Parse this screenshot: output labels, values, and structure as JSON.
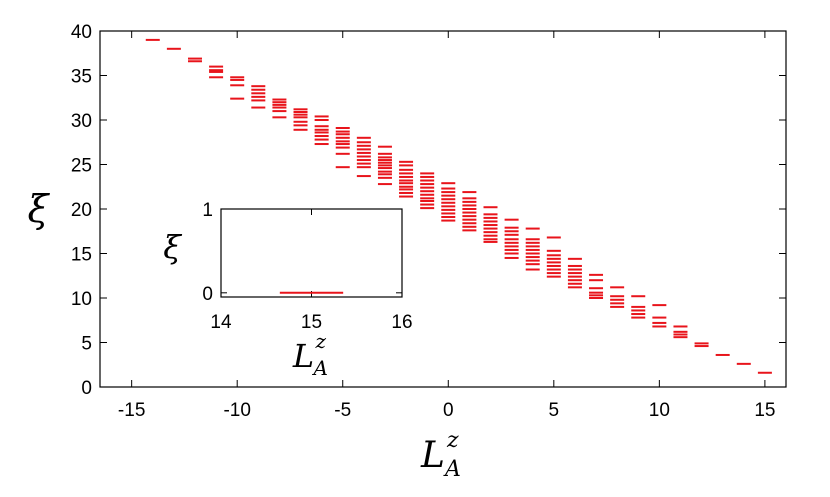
{
  "chart_data": [
    {
      "type": "scatter",
      "marker": "horizontal-dash",
      "title": "",
      "xlabel": "L",
      "xlabel_sub": "A",
      "xlabel_sup": "z",
      "ylabel": "ξ",
      "xlim": [
        -16.5,
        16
      ],
      "ylim": [
        0,
        40
      ],
      "xticks": [
        -15,
        -10,
        -5,
        0,
        5,
        10,
        15
      ],
      "yticks": [
        0,
        5,
        10,
        15,
        20,
        25,
        30,
        35,
        40
      ],
      "xtick_labels": [
        "-15",
        "-10",
        "-5",
        "0",
        "5",
        "10",
        "15"
      ],
      "ytick_labels": [
        "0",
        "5",
        "10",
        "15",
        "20",
        "25",
        "30",
        "35",
        "40"
      ],
      "color": "#e8141b",
      "grid": false,
      "legend": "none",
      "series": [
        {
          "x": -14,
          "y": [
            39.0
          ]
        },
        {
          "x": -13,
          "y": [
            38.0
          ]
        },
        {
          "x": -12,
          "y": [
            36.9,
            36.6
          ]
        },
        {
          "x": -11,
          "y": [
            36.0,
            35.6,
            35.4,
            34.8
          ]
        },
        {
          "x": -10,
          "y": [
            34.8,
            34.5,
            33.9,
            32.4
          ]
        },
        {
          "x": -9,
          "y": [
            33.8,
            33.4,
            33.0,
            32.6,
            32.2,
            31.4
          ]
        },
        {
          "x": -8,
          "y": [
            32.3,
            32.0,
            31.7,
            31.4,
            31.0,
            30.3
          ]
        },
        {
          "x": -7,
          "y": [
            31.2,
            30.9,
            30.6,
            30.3,
            29.8,
            29.4,
            28.9
          ]
        },
        {
          "x": -6,
          "y": [
            30.4,
            30.0,
            29.3,
            28.9,
            28.6,
            28.2,
            27.8,
            27.3
          ]
        },
        {
          "x": -5,
          "y": [
            29.1,
            28.7,
            28.4,
            28.0,
            27.6,
            27.3,
            26.9,
            26.2,
            24.7
          ]
        },
        {
          "x": -4,
          "y": [
            28.0,
            27.5,
            27.1,
            26.7,
            26.3,
            25.9,
            25.5,
            25.1,
            24.7,
            23.7
          ]
        },
        {
          "x": -3,
          "y": [
            27.0,
            26.2,
            25.8,
            25.5,
            25.2,
            24.9,
            24.6,
            24.2,
            23.9,
            23.5,
            22.8
          ]
        },
        {
          "x": -2,
          "y": [
            25.3,
            24.9,
            24.4,
            24.0,
            23.6,
            23.2,
            22.9,
            22.5,
            22.2,
            21.8,
            21.4
          ]
        },
        {
          "x": -1,
          "y": [
            24.0,
            23.6,
            23.2,
            22.8,
            22.4,
            22.0,
            21.6,
            21.2,
            20.9,
            20.5,
            20.1
          ]
        },
        {
          "x": 0,
          "y": [
            22.9,
            22.3,
            21.9,
            21.5,
            21.1,
            20.7,
            20.3,
            19.9,
            19.5,
            19.1,
            18.7
          ]
        },
        {
          "x": 1,
          "y": [
            21.9,
            21.2,
            20.8,
            20.4,
            20.0,
            19.6,
            19.2,
            18.8,
            18.4,
            18.0,
            17.6
          ]
        },
        {
          "x": 2,
          "y": [
            20.2,
            19.4,
            19.0,
            18.6,
            18.2,
            17.8,
            17.4,
            17.0,
            16.6,
            16.3
          ]
        },
        {
          "x": 3,
          "y": [
            18.8,
            17.9,
            17.5,
            17.1,
            16.6,
            16.2,
            15.8,
            15.4,
            15.0,
            14.5
          ]
        },
        {
          "x": 4,
          "y": [
            17.8,
            16.6,
            16.2,
            15.8,
            15.4,
            15.0,
            14.6,
            14.2,
            13.8,
            13.2
          ]
        },
        {
          "x": 5,
          "y": [
            16.8,
            15.3,
            14.8,
            14.4,
            14.0,
            13.6,
            13.2,
            12.8,
            12.4
          ]
        },
        {
          "x": 6,
          "y": [
            14.4,
            13.6,
            13.2,
            12.8,
            12.4,
            12.0,
            11.6,
            11.2
          ]
        },
        {
          "x": 7,
          "y": [
            12.6,
            12.0,
            11.1,
            10.6,
            10.3,
            10.0
          ]
        },
        {
          "x": 8,
          "y": [
            11.2,
            10.2,
            9.8,
            9.4,
            9.0
          ]
        },
        {
          "x": 9,
          "y": [
            10.2,
            9.0,
            8.6,
            8.2,
            7.8
          ]
        },
        {
          "x": 10,
          "y": [
            9.2,
            7.8,
            7.2,
            6.8
          ]
        },
        {
          "x": 11,
          "y": [
            6.8,
            6.2,
            5.9,
            5.6
          ]
        },
        {
          "x": 12,
          "y": [
            4.9,
            4.6
          ]
        },
        {
          "x": 13,
          "y": [
            3.6
          ]
        },
        {
          "x": 14,
          "y": [
            2.6
          ]
        },
        {
          "x": 15,
          "y": [
            1.6
          ]
        }
      ]
    },
    {
      "type": "scatter",
      "marker": "horizontal-dash",
      "inset": true,
      "title": "",
      "xlabel": "L",
      "xlabel_sub": "A",
      "xlabel_sup": "z",
      "ylabel": "ξ",
      "xlim": [
        14,
        16
      ],
      "ylim": [
        -0.05,
        1
      ],
      "xticks": [
        14,
        15,
        16
      ],
      "yticks": [
        0,
        1
      ],
      "xtick_labels": [
        "14",
        "15",
        "16"
      ],
      "ytick_labels": [
        "0",
        "1"
      ],
      "color": "#e8141b",
      "grid": false,
      "legend": "none",
      "segments": [
        {
          "x_start": 14.65,
          "x_end": 15.35,
          "y": 0
        }
      ]
    }
  ]
}
